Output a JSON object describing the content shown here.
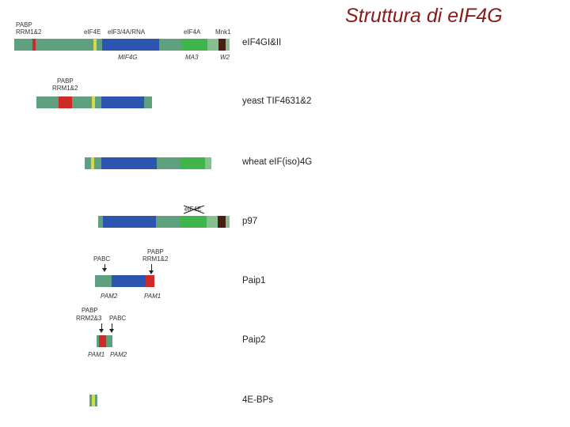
{
  "title": "Struttura di eIF4G",
  "colors": {
    "green": "#5fa07e",
    "light_green": "#86c08f",
    "yellow": "#d6da4a",
    "blue": "#2d55b0",
    "red": "#cf2a2a",
    "bright_green": "#3fb54c",
    "dark_brown": "#4a1e12",
    "name_text": "#222222",
    "title_color": "#8b1a1a"
  },
  "rows": {
    "eif4g": {
      "name": "eIF4GI&II",
      "labels": {
        "pabp": "PABP",
        "rrm": "RRM1&2",
        "eif4e": "eIF4E",
        "eif3": "eIF3/4A/RNA",
        "eif4a": "eIF4A",
        "mnk1": "Mnk1",
        "mif4g": "MIF4G",
        "ma3": "MA3",
        "w2": "W2"
      }
    },
    "yeast": {
      "name": "yeast TIF4631&2",
      "labels": {
        "pabp": "PABP",
        "rrm": "RRM1&2"
      }
    },
    "wheat": {
      "name": "wheat eIF(iso)4G"
    },
    "p97": {
      "name": "p97",
      "labels": {
        "struck": "eIF4E"
      }
    },
    "paip1": {
      "name": "Paip1",
      "labels": {
        "pabc": "PABC",
        "pabp": "PABP",
        "rrm": "RRM1&2",
        "pam2": "PAM2",
        "pam1": "PAM1"
      }
    },
    "paip2": {
      "name": "Paip2",
      "labels": {
        "pabp": "PABP",
        "rrm": "RRM2&3",
        "pabc": "PABC",
        "pam1": "PAM1",
        "pam2": "PAM2"
      }
    },
    "bps": {
      "name": "4E-BPs"
    }
  }
}
